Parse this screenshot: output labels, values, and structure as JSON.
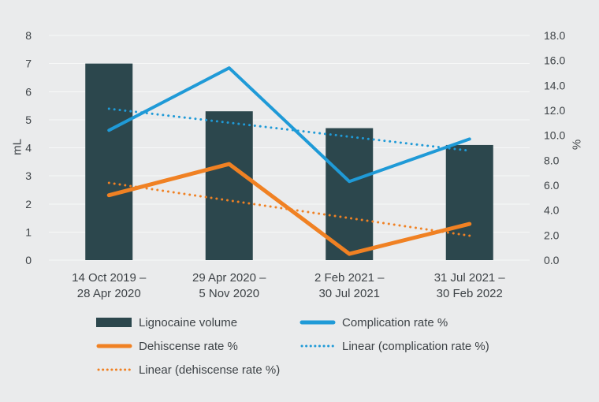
{
  "chart_data": {
    "type": "combo",
    "title": "",
    "categories": [
      [
        "14 Oct 2019 –",
        "28 Apr 2020"
      ],
      [
        "29 Apr 2020 –",
        "5 Nov 2020"
      ],
      [
        "2 Feb 2021 –",
        "30 Jul 2021"
      ],
      [
        "31 Jul 2021 –",
        "30 Feb 2022"
      ]
    ],
    "left_axis": {
      "label": "mL",
      "min": 0,
      "max": 8,
      "tick_step": 1,
      "ticks": [
        "0",
        "1",
        "2",
        "3",
        "4",
        "5",
        "6",
        "7",
        "8"
      ]
    },
    "right_axis": {
      "label": "%",
      "min": 0,
      "max": 18,
      "tick_step": 2,
      "ticks": [
        "0.0",
        "2.0",
        "4.0",
        "6.0",
        "8.0",
        "10.0",
        "12.0",
        "14.0",
        "16.0",
        "18.0"
      ]
    },
    "series": [
      {
        "name": "Lignocaine volume",
        "type": "bar",
        "axis": "left",
        "color": "#2c474d",
        "values": [
          7.0,
          5.3,
          4.7,
          4.1
        ]
      },
      {
        "name": "Complication rate %",
        "type": "line",
        "axis": "right",
        "color": "#1f9ad7",
        "values": [
          10.4,
          15.4,
          6.3,
          9.7
        ]
      },
      {
        "name": "Dehiscense rate %",
        "type": "line",
        "axis": "right",
        "color": "#f08123",
        "values": [
          5.2,
          7.7,
          0.5,
          2.9
        ]
      },
      {
        "name": "Linear (complication rate %)",
        "type": "trendline",
        "axis": "right",
        "color": "#1f9ad7",
        "source_values": [
          10.4,
          15.4,
          6.3,
          9.7
        ]
      },
      {
        "name": "Linear (dehiscense rate %)",
        "type": "trendline",
        "axis": "right",
        "color": "#f08123",
        "source_values": [
          5.2,
          7.7,
          0.5,
          2.9
        ]
      }
    ],
    "grid": true,
    "legend_position": "bottom",
    "colors": {
      "background": "#eaebec",
      "gridline": "#f7f8f8",
      "text": "#3e4347",
      "bar": "#2c474d",
      "blue": "#1f9ad7",
      "orange": "#f08123"
    }
  }
}
